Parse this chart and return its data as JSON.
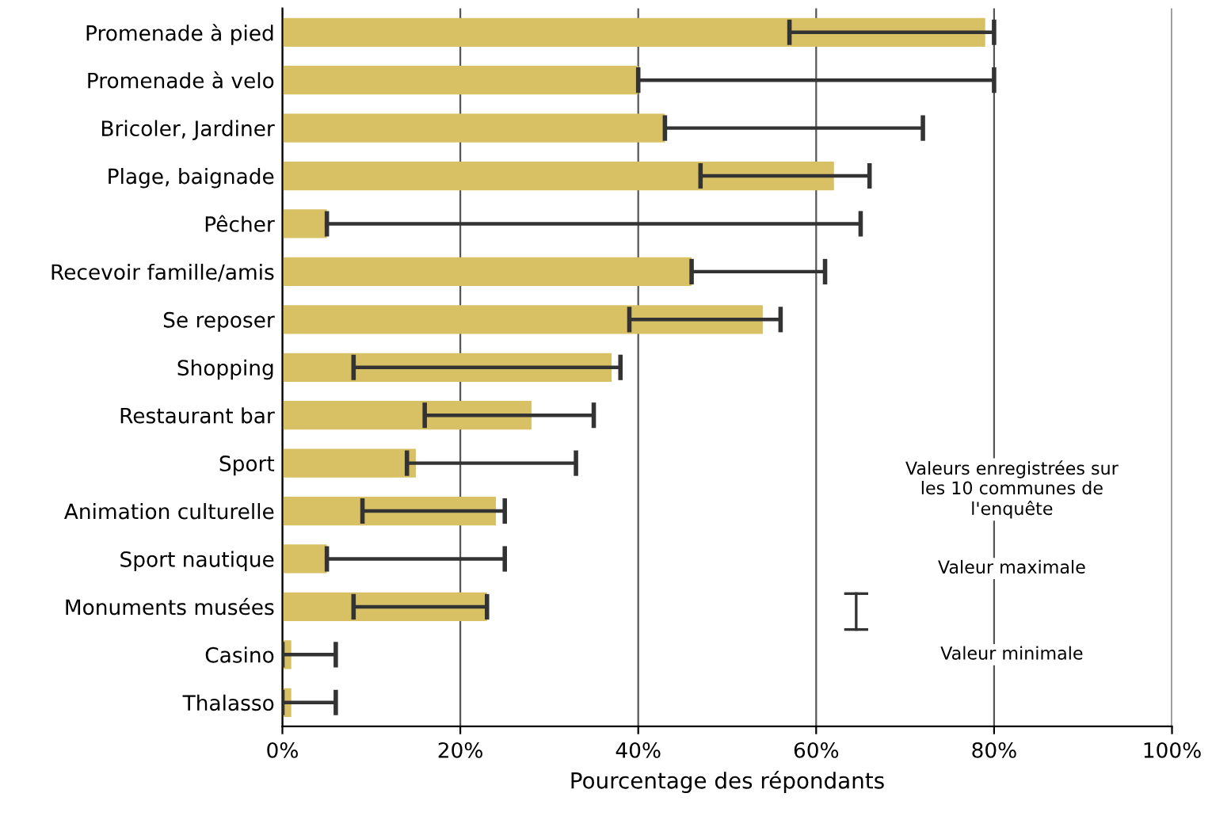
{
  "chart_data": {
    "type": "bar",
    "orientation": "horizontal",
    "xlabel": "Pourcentage des répondants",
    "categories": [
      "Promenade à pied",
      "Promenade à velo",
      "Bricoler, Jardiner",
      "Plage, baignade",
      "Pêcher",
      "Recevoir famille/amis",
      "Se reposer",
      "Shopping",
      "Restaurant bar",
      "Sport",
      "Animation culturelle",
      "Sport nautique",
      "Monuments musées",
      "Casino",
      "Thalasso"
    ],
    "values": [
      79,
      40,
      43,
      62,
      5,
      46,
      54,
      37,
      28,
      15,
      24,
      5,
      23,
      1,
      1
    ],
    "errors": [
      [
        57,
        80
      ],
      [
        40,
        80
      ],
      [
        43,
        72
      ],
      [
        47,
        66
      ],
      [
        5,
        65
      ],
      [
        46,
        61
      ],
      [
        39,
        56
      ],
      [
        8,
        38
      ],
      [
        16,
        35
      ],
      [
        14,
        33
      ],
      [
        9,
        25
      ],
      [
        5,
        25
      ],
      [
        8,
        23
      ],
      [
        0,
        6
      ],
      [
        0,
        6
      ]
    ],
    "color": "#d8c064",
    "xlim": [
      0,
      100
    ],
    "xticks": [
      {
        "value": 0,
        "label": "0%"
      },
      {
        "value": 20,
        "label": "20%"
      },
      {
        "value": 40,
        "label": "40%"
      },
      {
        "value": 60,
        "label": "60%"
      },
      {
        "value": 80,
        "label": "80%"
      },
      {
        "value": 100,
        "label": "100%"
      }
    ],
    "grid": "x",
    "annotations": [
      "Valeurs enregistrées sur\nles 10 communes de\nl'enquête",
      "Valeur maximale",
      "Valeur minimale"
    ]
  }
}
